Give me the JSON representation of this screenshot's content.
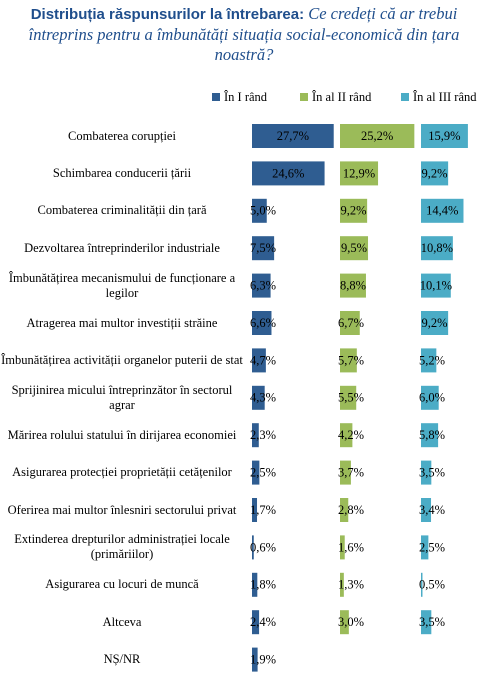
{
  "chart_data": {
    "type": "bar",
    "orientation": "horizontal",
    "title": "Distribuția răspunsurilor la întrebarea:",
    "subtitle": "Ce credeți că ar trebui întreprins pentru a îmbunătăți situația social-economică din țara noastră?",
    "categories": [
      "Combaterea corupției",
      "Schimbarea conducerii țării",
      "Combaterea criminalității din țară",
      "Dezvoltarea întreprinderilor industriale",
      "Îmbunătățirea mecanismului de funcționare a legilor",
      "Atragerea mai multor investiții străine",
      "Îmbunătățirea activității organelor puterii de stat",
      "Sprijinirea micului întreprinzător în sectorul agrar",
      "Mărirea rolului statului în dirijarea economiei",
      "Asigurarea protecției proprietății cetățenilor",
      "Oferirea mai multor înlesniri sectorului privat",
      "Extinderea drepturilor administrației locale (primăriilor)",
      "Asigurarea cu locuri de muncă",
      "Altceva",
      "NȘ/NR"
    ],
    "series": [
      {
        "name": "În I rând",
        "color": "#2f5d91",
        "values": [
          27.7,
          24.6,
          5.0,
          7.5,
          6.3,
          6.6,
          4.7,
          4.3,
          2.3,
          2.5,
          1.7,
          0.6,
          1.8,
          2.4,
          1.9
        ],
        "value_labels": [
          "27,7%",
          "24,6%",
          "5,0%",
          "7,5%",
          "6,3%",
          "6,6%",
          "4,7%",
          "4,3%",
          "2,3%",
          "2,5%",
          "1,7%",
          "0,6%",
          "1,8%",
          "2,4%",
          "1,9%"
        ]
      },
      {
        "name": "În al II rând",
        "color": "#9bbb59",
        "values": [
          25.2,
          12.9,
          9.2,
          9.5,
          8.8,
          6.7,
          5.7,
          5.5,
          4.2,
          3.7,
          2.8,
          1.6,
          1.3,
          3.0,
          null
        ],
        "value_labels": [
          "25,2%",
          "12,9%",
          "9,2%",
          "9,5%",
          "8,8%",
          "6,7%",
          "5,7%",
          "5,5%",
          "4,2%",
          "3,7%",
          "2,8%",
          "1,6%",
          "1,3%",
          "3,0%",
          null
        ]
      },
      {
        "name": "În al III rând",
        "color": "#4bacc6",
        "values": [
          15.9,
          9.2,
          14.4,
          10.8,
          10.1,
          9.2,
          5.2,
          6.0,
          5.8,
          3.5,
          3.4,
          2.5,
          0.5,
          3.5,
          null
        ],
        "value_labels": [
          "15,9%",
          "9,2%",
          "14,4%",
          "10,8%",
          "10,1%",
          "9,2%",
          "5,2%",
          "6,0%",
          "5,8%",
          "3,5%",
          "3,4%",
          "2,5%",
          "0,5%",
          "3,5%",
          null
        ]
      }
    ]
  }
}
